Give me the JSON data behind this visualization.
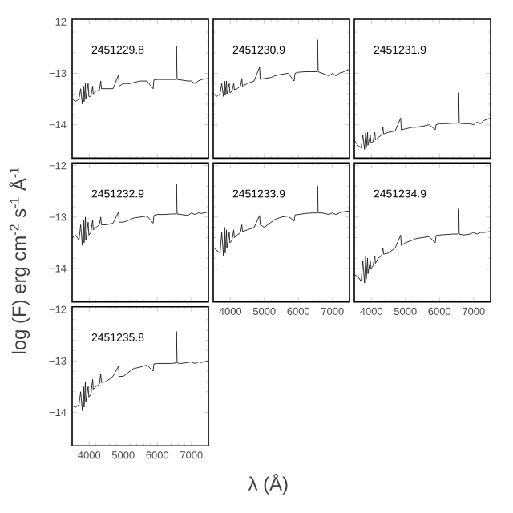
{
  "chart_data": [
    {
      "type": "line",
      "annotations": [
        "2451229.8"
      ],
      "tick_labels": "y",
      "xlim": [
        3500,
        7500
      ],
      "ylim": [
        -14.65,
        -11.95
      ],
      "xticks": [
        4000,
        5000,
        6000,
        7000
      ],
      "yticks": [
        {
          "value": -12,
          "label": "−12"
        },
        {
          "value": -13,
          "label": "−13"
        },
        {
          "value": -14,
          "label": "−14"
        }
      ],
      "color": "#1a1a1a",
      "x": [
        3500,
        3600,
        3700,
        3750,
        3800,
        3835,
        3850,
        3889,
        3900,
        3970,
        3990,
        4050,
        4102,
        4120,
        4200,
        4300,
        4340,
        4360,
        4500,
        4700,
        4861,
        4880,
        5000,
        5200,
        5300,
        5500,
        5700,
        5876,
        5900,
        6000,
        6200,
        6400,
        6550,
        6563,
        6580,
        6700,
        6900,
        7000,
        7100,
        7200,
        7300,
        7500
      ],
      "values": [
        -13.5,
        -13.55,
        -13.5,
        -13.3,
        -13.6,
        -13.25,
        -13.55,
        -13.2,
        -13.5,
        -13.2,
        -13.45,
        -13.45,
        -13.25,
        -13.4,
        -13.35,
        -13.33,
        -13.15,
        -13.3,
        -13.3,
        -13.3,
        -13.03,
        -13.25,
        -13.2,
        -13.2,
        -13.18,
        -13.15,
        -13.15,
        -13.3,
        -13.13,
        -13.12,
        -13.12,
        -13.12,
        -13.12,
        -12.47,
        -13.12,
        -13.13,
        -13.15,
        -13.15,
        -13.2,
        -13.15,
        -13.12,
        -13.1
      ]
    },
    {
      "type": "line",
      "annotations": [
        "2451230.9"
      ],
      "tick_labels": false,
      "xlim": [
        3500,
        7500
      ],
      "ylim": [
        -14.65,
        -11.95
      ],
      "xticks": [
        4000,
        5000,
        6000,
        7000
      ],
      "yticks": [
        -12,
        -13,
        -14
      ],
      "color": "#1a1a1a",
      "x": [
        3500,
        3600,
        3700,
        3750,
        3800,
        3835,
        3850,
        3889,
        3900,
        3970,
        3990,
        4050,
        4102,
        4120,
        4200,
        4300,
        4340,
        4360,
        4500,
        4700,
        4861,
        4880,
        5000,
        5200,
        5300,
        5500,
        5700,
        5876,
        5900,
        6000,
        6200,
        6400,
        6550,
        6563,
        6580,
        6700,
        6900,
        7000,
        7100,
        7200,
        7300,
        7500
      ],
      "values": [
        -13.4,
        -13.45,
        -13.4,
        -13.2,
        -13.45,
        -13.15,
        -13.42,
        -13.15,
        -13.4,
        -13.2,
        -13.38,
        -13.35,
        -13.2,
        -13.32,
        -13.3,
        -13.25,
        -13.1,
        -13.25,
        -13.2,
        -13.15,
        -12.88,
        -13.12,
        -13.1,
        -13.08,
        -13.05,
        -13.02,
        -13.0,
        -13.15,
        -13.0,
        -12.98,
        -12.97,
        -12.97,
        -12.97,
        -12.35,
        -12.97,
        -13.0,
        -13.05,
        -13.0,
        -13.05,
        -13.0,
        -12.98,
        -12.92
      ]
    },
    {
      "type": "line",
      "annotations": [
        "2451231.9"
      ],
      "tick_labels": false,
      "xlim": [
        3500,
        7500
      ],
      "ylim": [
        -14.65,
        -11.95
      ],
      "xticks": [
        4000,
        5000,
        6000,
        7000
      ],
      "yticks": [
        -12,
        -13,
        -14
      ],
      "color": "#1a1a1a",
      "x": [
        3500,
        3600,
        3700,
        3750,
        3800,
        3835,
        3850,
        3889,
        3900,
        3970,
        3990,
        4050,
        4102,
        4120,
        4200,
        4300,
        4340,
        4360,
        4500,
        4700,
        4861,
        4880,
        5000,
        5200,
        5300,
        5500,
        5700,
        5876,
        5900,
        6000,
        6200,
        6400,
        6550,
        6563,
        6580,
        6700,
        6900,
        7000,
        7100,
        7200,
        7300,
        7500
      ],
      "values": [
        -14.3,
        -14.4,
        -14.45,
        -14.2,
        -14.48,
        -14.15,
        -14.45,
        -14.15,
        -14.4,
        -14.2,
        -14.35,
        -14.33,
        -14.15,
        -14.3,
        -14.25,
        -14.2,
        -14.05,
        -14.18,
        -14.15,
        -14.12,
        -13.87,
        -14.1,
        -14.08,
        -14.05,
        -14.05,
        -14.03,
        -14.0,
        -14.1,
        -14.0,
        -13.98,
        -13.98,
        -13.97,
        -13.97,
        -13.38,
        -13.97,
        -13.98,
        -13.98,
        -14.0,
        -13.95,
        -13.98,
        -13.92,
        -13.87
      ]
    },
    {
      "type": "line",
      "annotations": [
        "2451232.9"
      ],
      "tick_labels": "y",
      "ylabel": "log (F) erg cm$^{-2}$ s$^{-1}$ Å$^{-1}$",
      "xlim": [
        3500,
        7500
      ],
      "ylim": [
        -14.65,
        -11.95
      ],
      "xticks": [
        4000,
        5000,
        6000,
        7000
      ],
      "yticks": [
        {
          "value": -12,
          "label": "−12"
        },
        {
          "value": -13,
          "label": "−13"
        },
        {
          "value": -14,
          "label": "−14"
        }
      ],
      "color": "#1a1a1a",
      "x": [
        3500,
        3600,
        3700,
        3750,
        3800,
        3835,
        3850,
        3889,
        3900,
        3970,
        3990,
        4050,
        4102,
        4120,
        4200,
        4300,
        4340,
        4360,
        4500,
        4700,
        4861,
        4880,
        5000,
        5200,
        5300,
        5500,
        5700,
        5876,
        5900,
        6000,
        6200,
        6400,
        6550,
        6563,
        6580,
        6700,
        6900,
        7000,
        7100,
        7200,
        7300,
        7500
      ],
      "values": [
        -13.4,
        -13.35,
        -13.45,
        -13.15,
        -13.55,
        -13.05,
        -13.5,
        -13.0,
        -13.45,
        -13.1,
        -13.35,
        -13.3,
        -13.05,
        -13.25,
        -13.2,
        -13.15,
        -13.0,
        -13.15,
        -13.15,
        -13.12,
        -12.9,
        -13.1,
        -13.1,
        -13.05,
        -13.02,
        -13.0,
        -12.98,
        -13.12,
        -12.97,
        -12.95,
        -12.95,
        -12.94,
        -12.94,
        -12.35,
        -12.94,
        -12.95,
        -12.97,
        -12.92,
        -12.95,
        -12.92,
        -12.93,
        -12.9
      ]
    },
    {
      "type": "line",
      "annotations": [
        "2451233.9"
      ],
      "tick_labels": "x",
      "xlim": [
        3500,
        7500
      ],
      "ylim": [
        -14.65,
        -11.95
      ],
      "xticks": [
        4000,
        5000,
        6000,
        7000
      ],
      "yticks": [
        -12,
        -13,
        -14
      ],
      "color": "#1a1a1a",
      "x": [
        3500,
        3600,
        3700,
        3750,
        3800,
        3835,
        3850,
        3889,
        3900,
        3970,
        3990,
        4050,
        4102,
        4120,
        4200,
        4300,
        4340,
        4360,
        4500,
        4700,
        4861,
        4880,
        5000,
        5200,
        5300,
        5500,
        5700,
        5876,
        5900,
        6000,
        6200,
        6400,
        6550,
        6563,
        6580,
        6700,
        6900,
        7000,
        7100,
        7200,
        7300,
        7500
      ],
      "values": [
        -13.58,
        -13.65,
        -13.7,
        -13.3,
        -13.75,
        -13.2,
        -13.7,
        -13.25,
        -13.6,
        -13.3,
        -13.5,
        -13.45,
        -13.25,
        -13.4,
        -13.35,
        -13.3,
        -13.15,
        -13.28,
        -13.25,
        -13.2,
        -12.97,
        -13.15,
        -13.2,
        -13.1,
        -13.05,
        -13.0,
        -12.98,
        -13.08,
        -12.96,
        -12.95,
        -12.93,
        -12.92,
        -12.92,
        -12.4,
        -12.92,
        -12.92,
        -12.95,
        -12.92,
        -12.95,
        -12.92,
        -12.9,
        -12.88
      ]
    },
    {
      "type": "line",
      "annotations": [
        "2451234.9"
      ],
      "tick_labels": "x",
      "xlim": [
        3500,
        7500
      ],
      "ylim": [
        -14.65,
        -11.95
      ],
      "xticks": [
        4000,
        5000,
        6000,
        7000
      ],
      "yticks": [
        -12,
        -13,
        -14
      ],
      "color": "#1a1a1a",
      "x": [
        3500,
        3600,
        3700,
        3750,
        3800,
        3835,
        3850,
        3889,
        3900,
        3970,
        3990,
        4050,
        4102,
        4120,
        4200,
        4300,
        4340,
        4360,
        4500,
        4700,
        4861,
        4880,
        5000,
        5200,
        5300,
        5500,
        5700,
        5876,
        5900,
        6000,
        6200,
        6400,
        6550,
        6563,
        6580,
        6700,
        6900,
        7000,
        7100,
        7200,
        7300,
        7500
      ],
      "values": [
        -14.12,
        -14.15,
        -14.25,
        -13.85,
        -14.28,
        -13.75,
        -14.2,
        -13.8,
        -14.1,
        -13.85,
        -14.0,
        -13.95,
        -13.75,
        -13.9,
        -13.8,
        -13.75,
        -13.6,
        -13.72,
        -13.7,
        -13.6,
        -13.35,
        -13.55,
        -13.5,
        -13.45,
        -13.42,
        -13.4,
        -13.38,
        -13.5,
        -13.36,
        -13.35,
        -13.34,
        -13.33,
        -13.33,
        -12.84,
        -13.33,
        -13.35,
        -13.33,
        -13.3,
        -13.33,
        -13.3,
        -13.3,
        -13.28
      ]
    },
    {
      "type": "line",
      "annotations": [
        "2451235.8"
      ],
      "xlabel": "λ (Å)",
      "xlim": [
        3500,
        7500
      ],
      "ylim": [
        -14.65,
        -11.95
      ],
      "xticks": [
        4000,
        5000,
        6000,
        7000
      ],
      "yticks": [
        {
          "value": -12,
          "label": "−12"
        },
        {
          "value": -13,
          "label": "−13"
        },
        {
          "value": -14,
          "label": "−14"
        }
      ],
      "color": "#1a1a1a",
      "x": [
        3500,
        3600,
        3700,
        3750,
        3800,
        3835,
        3850,
        3889,
        3900,
        3970,
        3990,
        4050,
        4102,
        4120,
        4200,
        4300,
        4340,
        4360,
        4500,
        4700,
        4861,
        4880,
        5000,
        5200,
        5300,
        5500,
        5700,
        5876,
        5900,
        6000,
        6200,
        6400,
        6550,
        6563,
        6580,
        6700,
        6900,
        7000,
        7100,
        7200,
        7300,
        7500
      ],
      "values": [
        -13.87,
        -13.9,
        -13.85,
        -13.6,
        -13.97,
        -13.5,
        -13.9,
        -13.4,
        -13.8,
        -13.5,
        -13.7,
        -13.65,
        -13.36,
        -13.55,
        -13.5,
        -13.45,
        -13.25,
        -13.42,
        -13.4,
        -13.3,
        -13.1,
        -13.3,
        -13.3,
        -13.2,
        -13.15,
        -13.12,
        -13.08,
        -13.2,
        -13.06,
        -13.05,
        -13.05,
        -13.05,
        -13.04,
        -12.43,
        -13.04,
        -13.05,
        -13.03,
        -13.02,
        -13.05,
        -13.02,
        -13.03,
        -13.0
      ]
    }
  ]
}
